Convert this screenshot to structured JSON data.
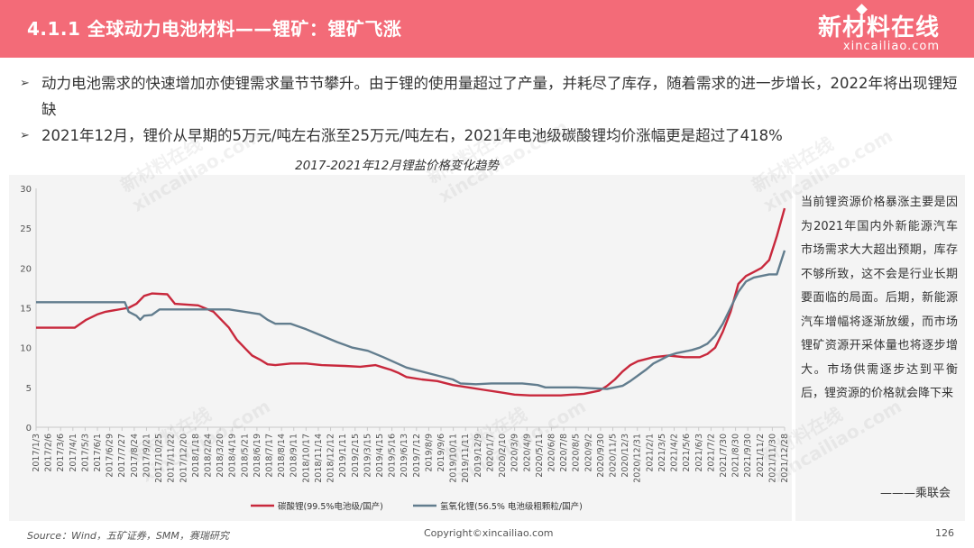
{
  "header": {
    "title": "4.1.1 全球动力电池材料——锂矿：锂矿飞涨"
  },
  "logo": {
    "cn": "新材料在线",
    "en": "xincailiao.com"
  },
  "bullets": [
    "动力电池需求的快速增加亦使锂需求量节节攀升。由于锂的使用量超过了产量，并耗尽了库存，随着需求的进一步增长，2022年将出现锂短缺",
    "2021年12月，锂价从早期的5万元/吨左右涨至25万元/吨左右，2021年电池级碳酸锂均价涨幅更是超过了418%"
  ],
  "watermark": {
    "cn": "新材料在线",
    "en": "xincailiao.com"
  },
  "side_note": {
    "text": "当前锂资源价格暴涨主要是因为2021年国内外新能源汽车市场需求大大超出预期，库存不够所致，这不会是行业长期要面临的局面。后期，新能源汽车增幅将逐渐放缓，而市场锂矿资源开采体量也将逐步增大。市场供需逐步达到平衡后，锂资源的价格就会降下来",
    "signature": "———乘联会"
  },
  "footer": {
    "source": "Source：Wind，五矿证券，SMM，赛瑞研究",
    "copyright": "Copyright©xincailiao.com",
    "page": "126"
  },
  "colors": {
    "header": "#f36b78",
    "series1": "#c8283c",
    "series2": "#627d8e"
  },
  "chart_data": {
    "type": "line",
    "title": "2017-2021年12月锂盐价格变化趋势",
    "ylim": [
      0,
      30
    ],
    "yticks": [
      0,
      5,
      10,
      15,
      20,
      25,
      30
    ],
    "grid": false,
    "legend_position": "bottom",
    "x_tick_labels": [
      "2017/1/3",
      "2017/2/6",
      "2017/3/6",
      "2017/4/1",
      "2017/5/3",
      "2017/6/1",
      "2017/6/29",
      "2017/7/27",
      "2017/8/24",
      "2017/9/21",
      "2017/10/25",
      "2017/11/22",
      "2017/12/20",
      "2018/1/18",
      "2018/2/24",
      "2018/3/20",
      "2018/4/19",
      "2018/5/21",
      "2018/6/19",
      "2018/7/17",
      "2018/8/14",
      "2018/9/11",
      "2018/10/17",
      "2018/11/14",
      "2018/12/12",
      "2019/1/11",
      "2019/2/15",
      "2019/3/15",
      "2019/4/15",
      "2019/5/16",
      "2019/6/13",
      "2019/7/12",
      "2019/8/9",
      "2019/9/6",
      "2019/10/11",
      "2019/11/11",
      "2019/12/9",
      "2020/1/7",
      "2020/2/10",
      "2020/3/9",
      "2020/4/9",
      "2020/5/11",
      "2020/6/8",
      "2020/7/8",
      "2020/8/5",
      "2020/9/2",
      "2020/9/30",
      "2020/11/5",
      "2020/12/3",
      "2020/12/31",
      "2021/2/1",
      "2021/3/5",
      "2021/4/2",
      "2021/5/6",
      "2021/6/3",
      "2021/7/2",
      "2021/7/30",
      "2021/8/30",
      "2021/9/30",
      "2021/11/2",
      "2021/11/30",
      "2021/12/28"
    ],
    "series": [
      {
        "name": "碳酸锂(99.5%电池级/国产)",
        "color": "#c8283c",
        "points": [
          [
            0,
            12.5
          ],
          [
            5,
            12.5
          ],
          [
            6.5,
            13.5
          ],
          [
            8,
            14.2
          ],
          [
            9,
            14.5
          ],
          [
            12,
            15
          ],
          [
            13,
            15.5
          ],
          [
            14,
            16.5
          ],
          [
            15,
            16.8
          ],
          [
            17,
            16.7
          ],
          [
            18,
            15.5
          ],
          [
            21,
            15.3
          ],
          [
            23,
            14.5
          ],
          [
            24,
            13.5
          ],
          [
            25,
            12.5
          ],
          [
            26,
            11
          ],
          [
            27,
            10
          ],
          [
            28,
            9
          ],
          [
            29,
            8.5
          ],
          [
            30,
            7.9
          ],
          [
            31,
            7.8
          ],
          [
            33,
            8
          ],
          [
            35,
            8
          ],
          [
            37,
            7.8
          ],
          [
            40,
            7.7
          ],
          [
            42,
            7.6
          ],
          [
            44,
            7.8
          ],
          [
            45,
            7.5
          ],
          [
            46,
            7.2
          ],
          [
            47,
            6.8
          ],
          [
            48,
            6.3
          ],
          [
            50,
            6
          ],
          [
            52,
            5.8
          ],
          [
            54,
            5.3
          ],
          [
            56,
            5
          ],
          [
            58,
            4.7
          ],
          [
            60,
            4.4
          ],
          [
            62,
            4.1
          ],
          [
            64,
            4
          ],
          [
            68,
            4
          ],
          [
            71,
            4.2
          ],
          [
            73,
            4.6
          ],
          [
            74,
            5.2
          ],
          [
            75,
            6
          ],
          [
            76,
            7
          ],
          [
            77,
            7.8
          ],
          [
            78,
            8.3
          ],
          [
            80,
            8.8
          ],
          [
            82,
            9
          ],
          [
            84,
            8.8
          ],
          [
            86,
            8.8
          ],
          [
            87,
            9.2
          ],
          [
            88,
            10
          ],
          [
            89,
            12
          ],
          [
            90,
            14.5
          ],
          [
            91,
            18
          ],
          [
            92,
            19
          ],
          [
            93,
            19.5
          ],
          [
            94,
            20
          ],
          [
            95,
            21
          ],
          [
            96,
            24
          ],
          [
            97,
            27.5
          ]
        ]
      },
      {
        "name": "氢氧化锂(56.5% 电池级粗颗粒/国产)",
        "color": "#627d8e",
        "points": [
          [
            0,
            15.7
          ],
          [
            5,
            15.7
          ],
          [
            11.5,
            15.7
          ],
          [
            12,
            14.5
          ],
          [
            13,
            14
          ],
          [
            13.5,
            13.5
          ],
          [
            14,
            14
          ],
          [
            15,
            14.1
          ],
          [
            16,
            14.8
          ],
          [
            22,
            14.8
          ],
          [
            25,
            14.8
          ],
          [
            29,
            14.2
          ],
          [
            30,
            13.5
          ],
          [
            31,
            13
          ],
          [
            33,
            13
          ],
          [
            35,
            12.3
          ],
          [
            37,
            11.5
          ],
          [
            39,
            10.7
          ],
          [
            41,
            10
          ],
          [
            43,
            9.6
          ],
          [
            45,
            8.8
          ],
          [
            48,
            7.5
          ],
          [
            52,
            6.5
          ],
          [
            54,
            6
          ],
          [
            55,
            5.5
          ],
          [
            57,
            5.4
          ],
          [
            59,
            5.5
          ],
          [
            63,
            5.5
          ],
          [
            65,
            5.3
          ],
          [
            66,
            5
          ],
          [
            70,
            5
          ],
          [
            74,
            4.8
          ],
          [
            76,
            5.2
          ],
          [
            77,
            5.8
          ],
          [
            78,
            6.5
          ],
          [
            79,
            7.2
          ],
          [
            80,
            8
          ],
          [
            81,
            8.5
          ],
          [
            82,
            9
          ],
          [
            83,
            9.3
          ],
          [
            84,
            9.5
          ],
          [
            85,
            9.7
          ],
          [
            86,
            10
          ],
          [
            87,
            10.5
          ],
          [
            88,
            11.5
          ],
          [
            89,
            13
          ],
          [
            90,
            15
          ],
          [
            91,
            17
          ],
          [
            92,
            18.3
          ],
          [
            93,
            18.8
          ],
          [
            94,
            19
          ],
          [
            95,
            19.2
          ],
          [
            96,
            19.2
          ],
          [
            97,
            22.2
          ]
        ]
      }
    ]
  }
}
